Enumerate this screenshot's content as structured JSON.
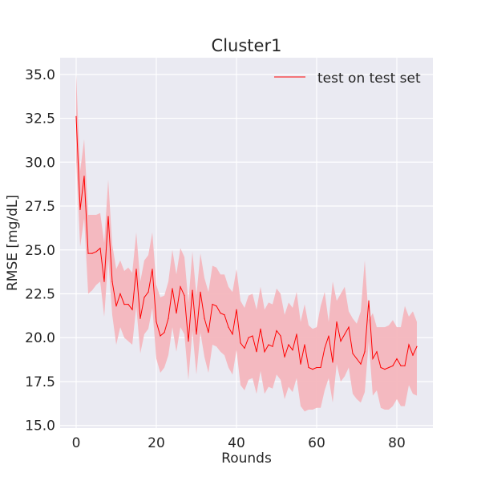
{
  "chart_data": {
    "type": "line",
    "title": "Cluster1",
    "xlabel": "Rounds",
    "ylabel": "RMSE [mg/dL]",
    "xlim": [
      -4,
      89
    ],
    "ylim": [
      14.85,
      35.95
    ],
    "xticks": [
      0,
      20,
      40,
      60,
      80
    ],
    "yticks": [
      15.0,
      17.5,
      20.0,
      22.5,
      25.0,
      27.5,
      30.0,
      32.5,
      35.0
    ],
    "xtick_labels": [
      "0",
      "20",
      "40",
      "60",
      "80"
    ],
    "ytick_labels": [
      "15.0",
      "17.5",
      "20.0",
      "22.5",
      "25.0",
      "27.5",
      "30.0",
      "32.5",
      "35.0"
    ],
    "grid": true,
    "legend_position": "top-right",
    "series": [
      {
        "name": "test on test set",
        "color": "#ff0000",
        "band_color": "#f4b6bd",
        "x": [
          0,
          1,
          2,
          3,
          4,
          5,
          6,
          7,
          8,
          9,
          10,
          11,
          12,
          13,
          14,
          15,
          16,
          17,
          18,
          19,
          20,
          21,
          22,
          23,
          24,
          25,
          26,
          27,
          28,
          29,
          30,
          31,
          32,
          33,
          34,
          35,
          36,
          37,
          38,
          39,
          40,
          41,
          42,
          43,
          44,
          45,
          46,
          47,
          48,
          49,
          50,
          51,
          52,
          53,
          54,
          55,
          56,
          57,
          58,
          59,
          60,
          61,
          62,
          63,
          64,
          65,
          66,
          67,
          68,
          69,
          70,
          71,
          72,
          73,
          74,
          75,
          76,
          77,
          78,
          79,
          80,
          81,
          82,
          83,
          84,
          85
        ],
        "y": [
          32.6,
          27.3,
          29.2,
          24.8,
          24.8,
          24.9,
          25.1,
          23.2,
          26.9,
          23.2,
          21.8,
          22.5,
          21.9,
          21.9,
          21.6,
          23.9,
          21.1,
          22.3,
          22.6,
          23.9,
          20.9,
          20.1,
          20.3,
          21.1,
          22.8,
          21.4,
          22.9,
          22.4,
          19.8,
          22.7,
          20.2,
          22.6,
          21.1,
          20.3,
          21.9,
          21.8,
          21.4,
          21.3,
          20.6,
          20.2,
          21.6,
          19.7,
          19.4,
          20.0,
          20.1,
          19.2,
          20.5,
          19.2,
          19.6,
          19.5,
          20.4,
          20.1,
          18.9,
          19.6,
          19.3,
          20.2,
          18.5,
          19.6,
          18.3,
          18.2,
          18.3,
          18.3,
          19.4,
          20.1,
          18.6,
          20.9,
          19.8,
          20.2,
          20.6,
          19.1,
          18.8,
          18.5,
          19.2,
          22.1,
          18.8,
          19.2,
          18.3,
          18.2,
          18.3,
          18.4,
          18.8,
          18.4,
          18.4,
          19.6,
          19.0,
          19.5
        ],
        "lower": [
          30.1,
          25.2,
          26.8,
          22.5,
          22.7,
          23.0,
          23.2,
          21.2,
          24.5,
          21.3,
          19.6,
          20.6,
          20.0,
          19.8,
          19.6,
          21.8,
          19.1,
          20.2,
          20.5,
          21.7,
          18.8,
          18.0,
          18.3,
          19.0,
          20.6,
          19.2,
          20.6,
          20.2,
          17.6,
          20.4,
          17.9,
          20.3,
          18.9,
          18.0,
          19.6,
          19.5,
          19.2,
          19.0,
          18.3,
          17.9,
          19.3,
          17.3,
          17.0,
          17.6,
          17.7,
          16.8,
          18.1,
          16.8,
          17.2,
          17.1,
          17.9,
          17.6,
          16.5,
          17.2,
          16.9,
          17.7,
          16.1,
          15.8,
          15.9,
          15.9,
          16.0,
          16.0,
          17.0,
          17.7,
          16.3,
          18.5,
          17.5,
          17.8,
          18.3,
          16.8,
          16.5,
          16.3,
          16.9,
          19.8,
          16.7,
          17.0,
          16.0,
          15.9,
          15.9,
          16.1,
          16.5,
          16.1,
          16.1,
          17.3,
          16.8,
          16.7
        ],
        "upper": [
          35.0,
          29.5,
          31.3,
          27.0,
          27.0,
          27.0,
          27.1,
          25.4,
          29.0,
          25.3,
          23.9,
          24.4,
          23.8,
          24.0,
          23.7,
          26.0,
          23.2,
          24.4,
          24.7,
          26.0,
          23.0,
          22.3,
          22.4,
          23.2,
          25.0,
          23.6,
          25.1,
          24.6,
          22.0,
          24.9,
          22.4,
          24.8,
          23.4,
          22.6,
          24.1,
          24.0,
          23.6,
          23.6,
          22.9,
          22.6,
          23.9,
          22.1,
          21.7,
          22.4,
          22.5,
          21.6,
          22.9,
          21.6,
          22.0,
          21.9,
          22.8,
          22.5,
          21.3,
          22.0,
          21.7,
          22.6,
          20.9,
          21.9,
          20.7,
          20.5,
          20.6,
          21.8,
          22.6,
          20.9,
          23.2,
          22.1,
          22.5,
          22.9,
          21.5,
          21.1,
          20.8,
          21.5,
          24.4,
          21.0,
          21.4,
          20.6,
          20.6,
          20.6,
          20.7,
          21.0,
          20.6,
          20.6,
          21.8,
          21.2,
          21.5,
          20.9
        ]
      }
    ]
  }
}
